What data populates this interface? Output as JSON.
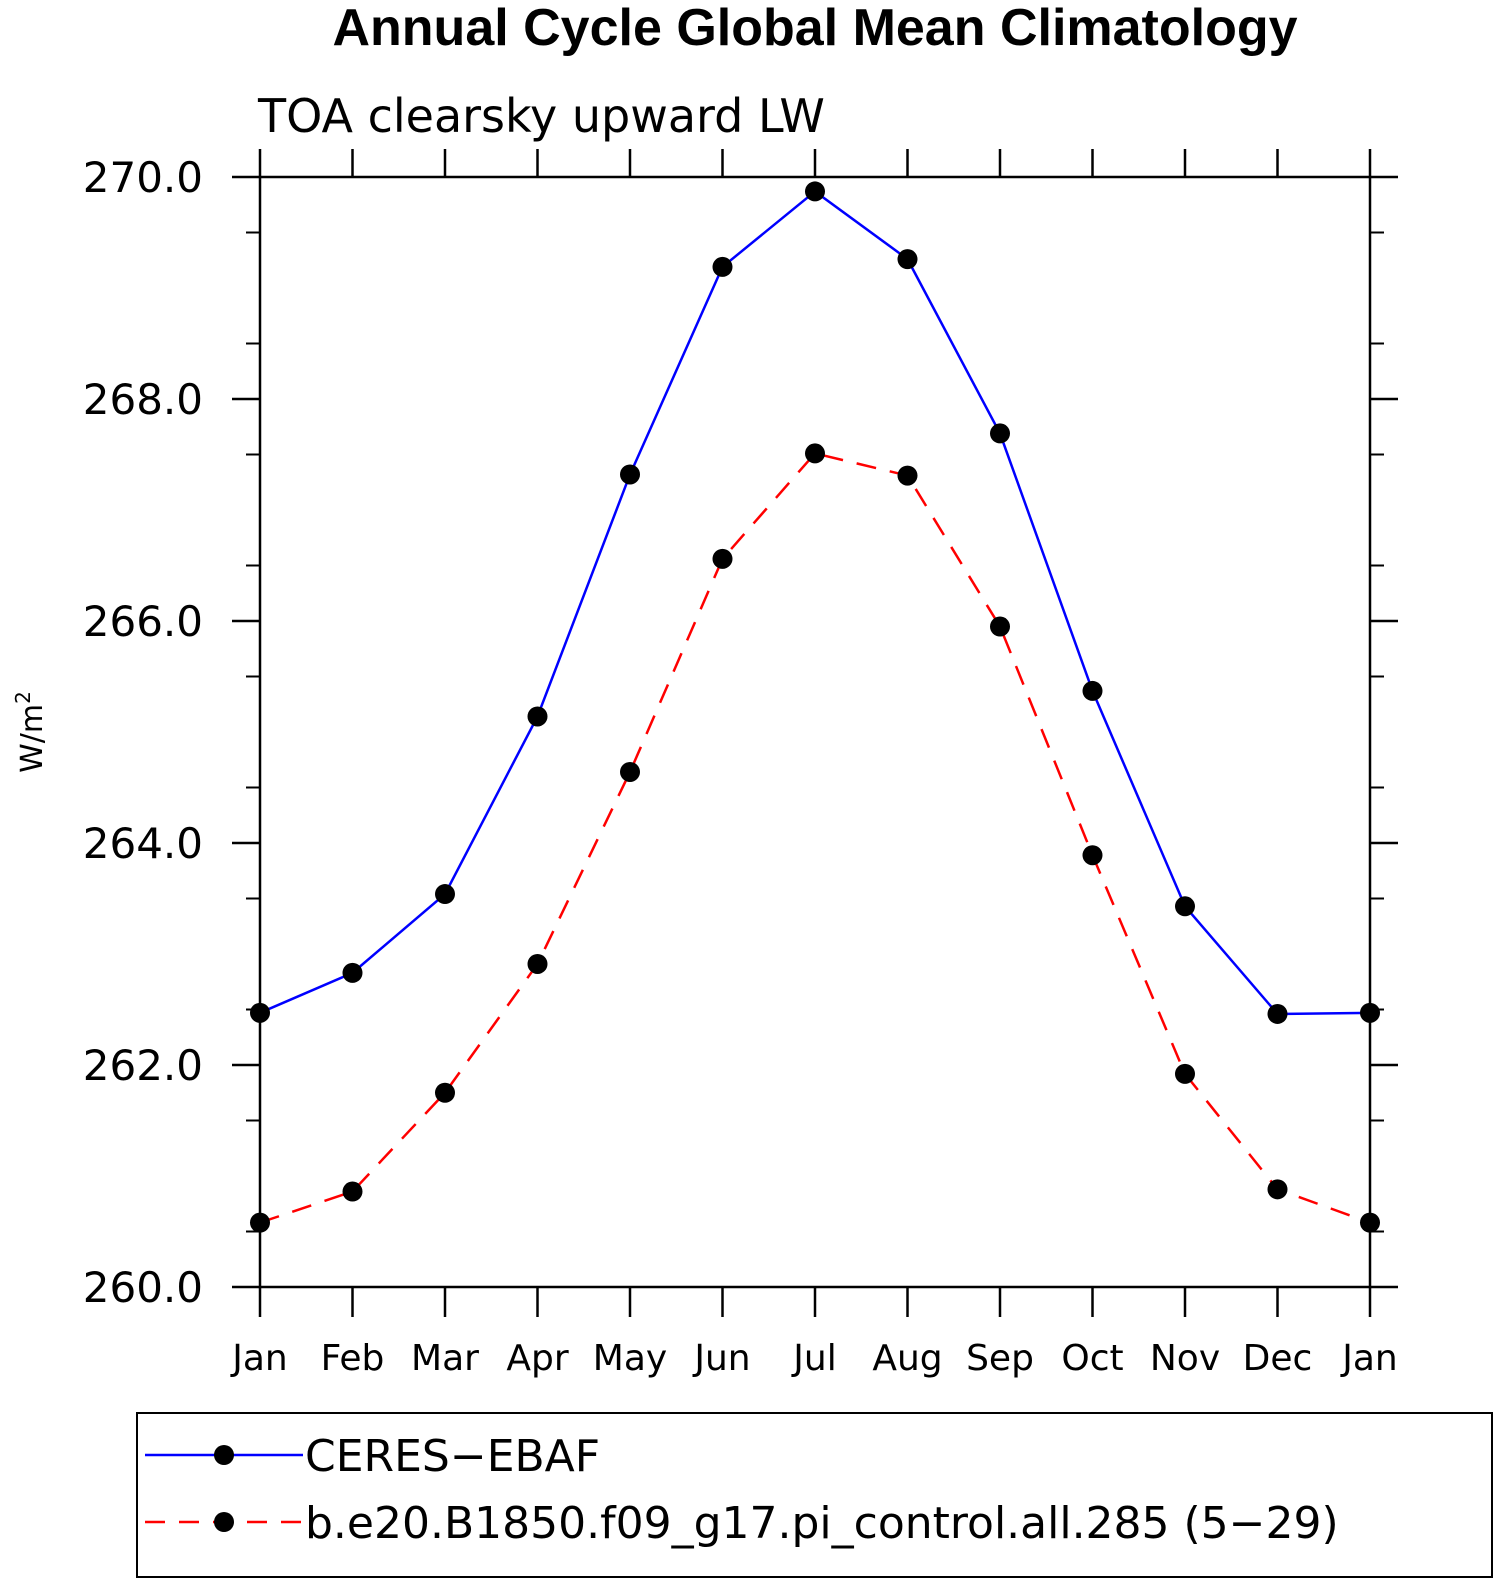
{
  "chart_data": {
    "type": "line",
    "title": "Annual Cycle Global Mean Climatology",
    "subtitle": "TOA clearsky upward LW",
    "ylabel": "W/m",
    "ylabel_superscript": "2",
    "xlabel": "",
    "categories": [
      "Jan",
      "Feb",
      "Mar",
      "Apr",
      "May",
      "Jun",
      "Jul",
      "Aug",
      "Sep",
      "Oct",
      "Nov",
      "Dec",
      "Jan"
    ],
    "ylim": [
      260.0,
      270.0
    ],
    "yticks": [
      "260.0",
      "262.0",
      "264.0",
      "266.0",
      "268.0",
      "270.0"
    ],
    "y_minor_step": 0.5,
    "grid": false,
    "legend_position": "bottom",
    "series": [
      {
        "name": "CERES−EBAF",
        "color": "#0000ff",
        "dash": "solid",
        "marker": "filled-circle",
        "values": [
          262.47,
          262.83,
          263.54,
          265.14,
          267.32,
          269.19,
          269.87,
          269.26,
          267.69,
          265.37,
          263.43,
          262.46,
          262.47
        ]
      },
      {
        "name": "b.e20.B1850.f09_g17.pi_control.all.285 (5−29)",
        "color": "#ff0000",
        "dash": "dashed",
        "marker": "filled-circle",
        "values": [
          260.58,
          260.86,
          261.75,
          262.91,
          264.64,
          266.56,
          267.51,
          267.31,
          265.95,
          263.89,
          261.92,
          260.88,
          260.58
        ]
      }
    ]
  }
}
